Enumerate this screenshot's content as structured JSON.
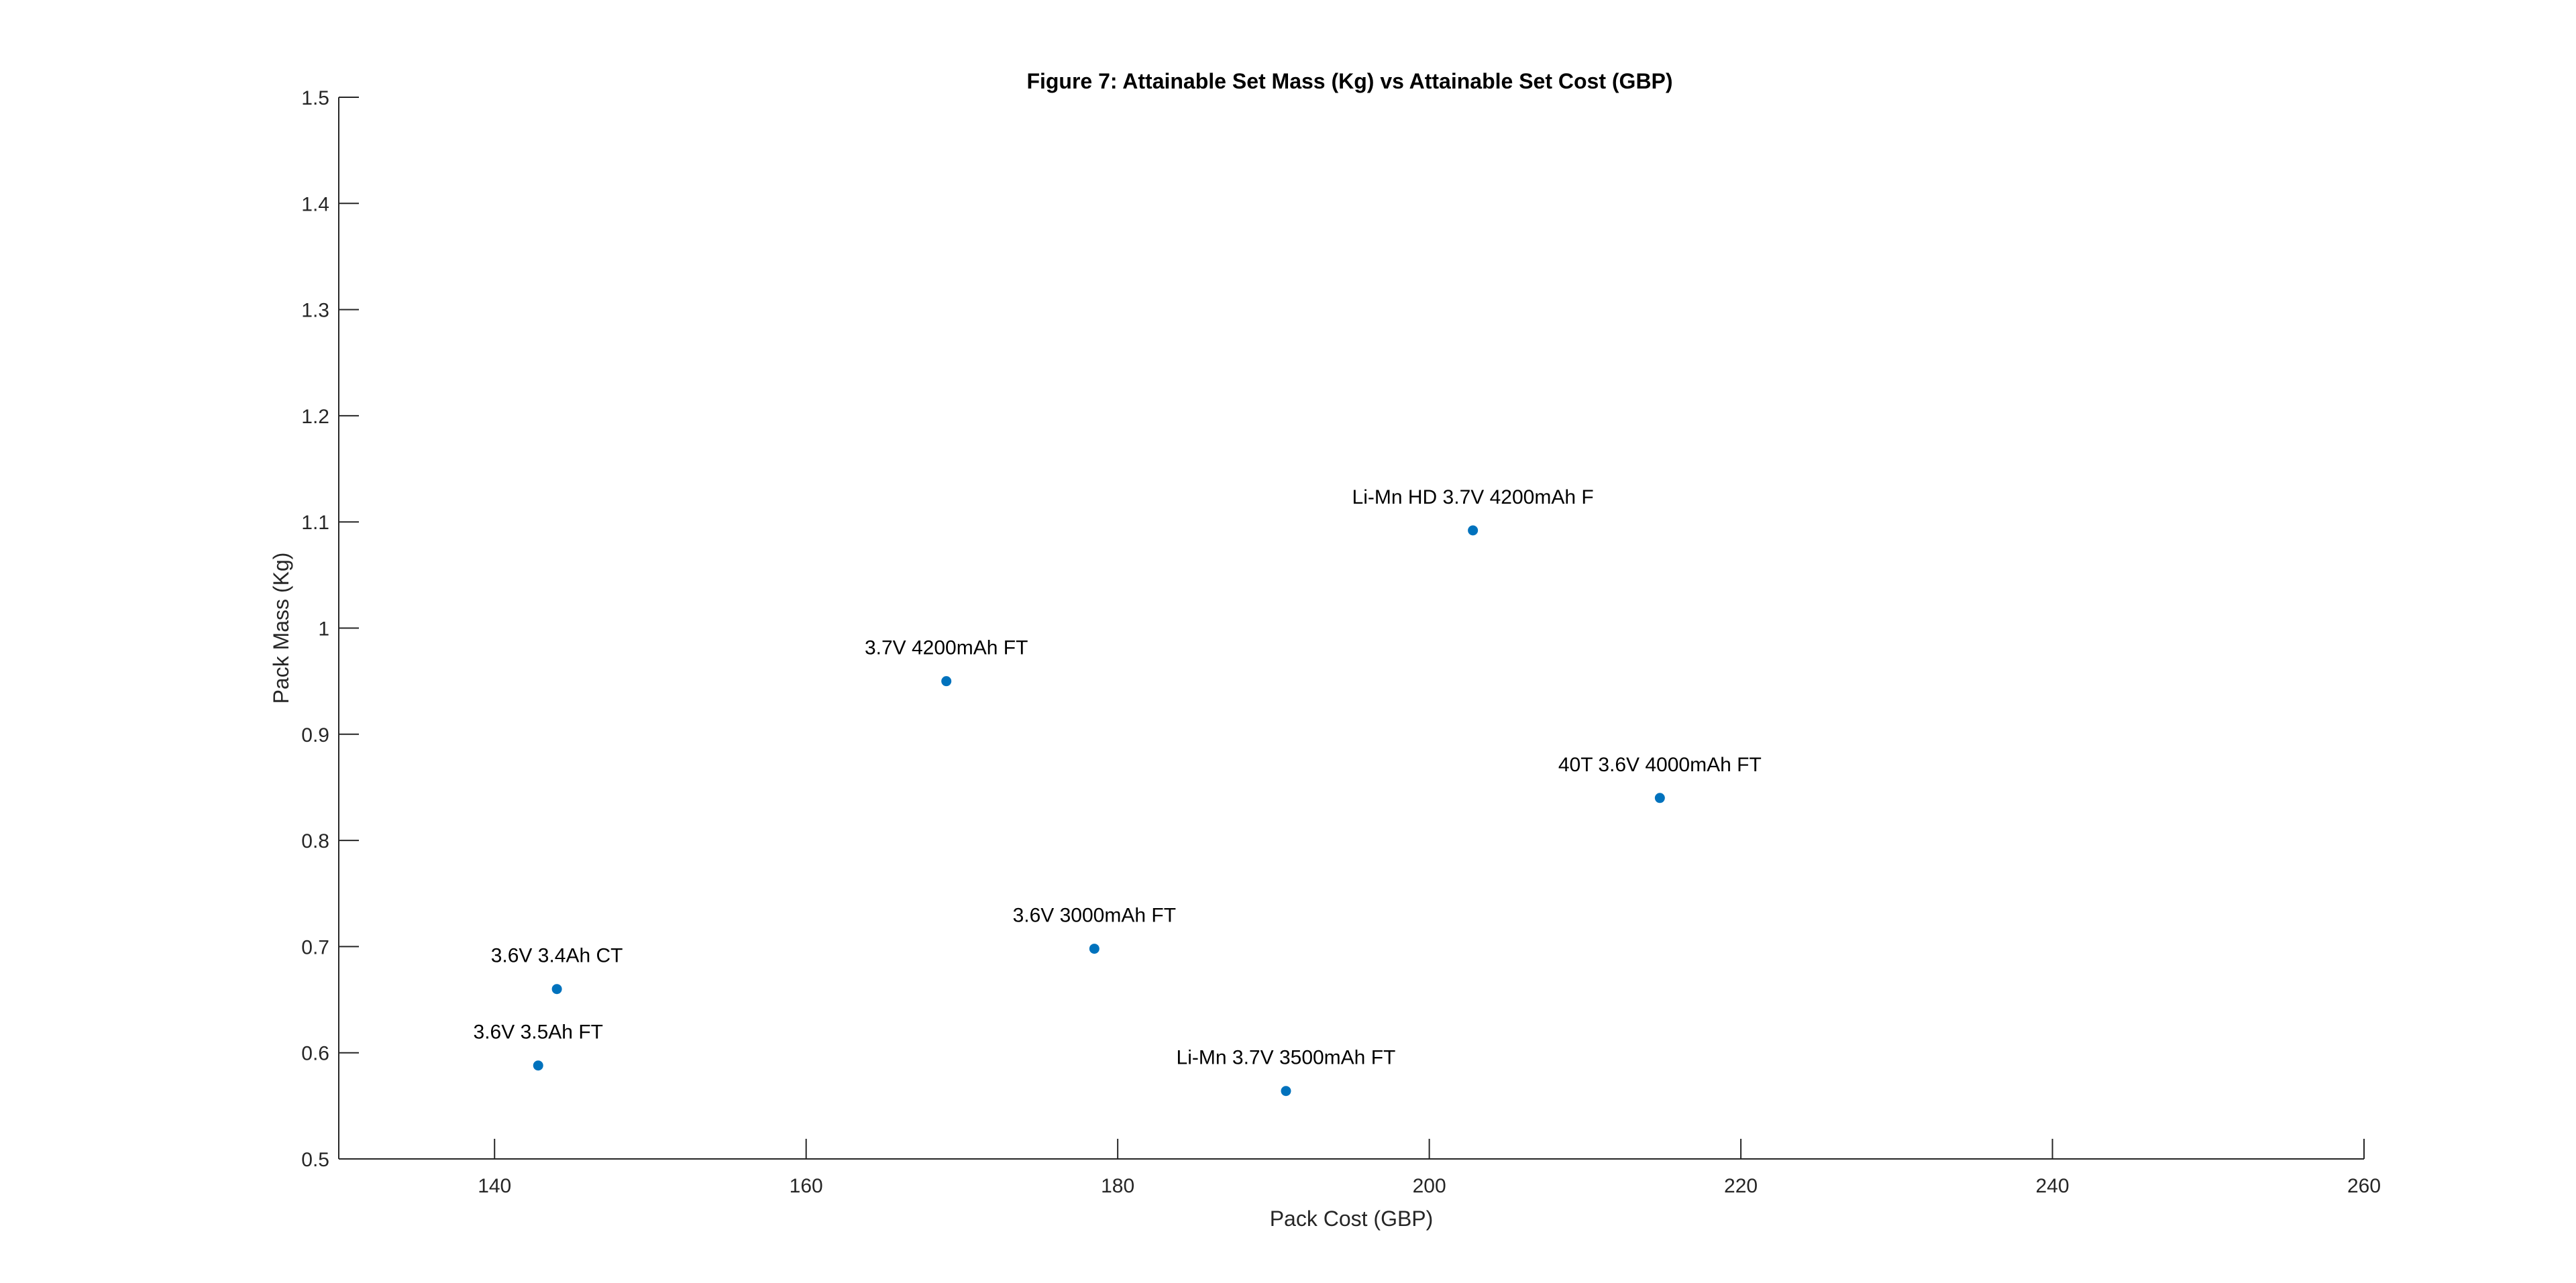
{
  "chart_data": {
    "type": "scatter",
    "title": "Figure 7: Attainable Set Mass (Kg) vs Attainable Set Cost (GBP)",
    "xlabel": "Pack Cost (GBP)",
    "ylabel": "Pack Mass (Kg)",
    "xlim": [
      130,
      260
    ],
    "ylim": [
      0.5,
      1.5
    ],
    "xticks": [
      140,
      160,
      180,
      200,
      220,
      240,
      260
    ],
    "yticks": [
      0.5,
      0.6,
      0.7,
      0.8,
      0.9,
      1,
      1.1,
      1.2,
      1.3,
      1.4,
      1.5
    ],
    "xtick_labels": [
      "140",
      "160",
      "180",
      "200",
      "220",
      "240",
      "260"
    ],
    "ytick_labels": [
      "0.5",
      "0.6",
      "0.7",
      "0.8",
      "0.9",
      "1",
      "1.1",
      "1.2",
      "1.3",
      "1.4",
      "1.5"
    ],
    "grid": false,
    "marker_color": "#0072BD",
    "points": [
      {
        "label": "3.6V 3.5Ah FT",
        "x": 142.8,
        "y": 0.588
      },
      {
        "label": "3.6V 3.4Ah CT",
        "x": 144.0,
        "y": 0.66
      },
      {
        "label": "3.7V 4200mAh FT",
        "x": 169.0,
        "y": 0.95
      },
      {
        "label": "3.6V 3000mAh FT",
        "x": 178.5,
        "y": 0.698
      },
      {
        "label": "Li-Mn 3.7V 3500mAh FT",
        "x": 190.8,
        "y": 0.564
      },
      {
        "label": "Li-Mn HD 3.7V 4200mAh F",
        "x": 202.8,
        "y": 1.092
      },
      {
        "label": "40T 3.6V 4000mAh FT",
        "x": 214.8,
        "y": 0.84
      }
    ]
  }
}
